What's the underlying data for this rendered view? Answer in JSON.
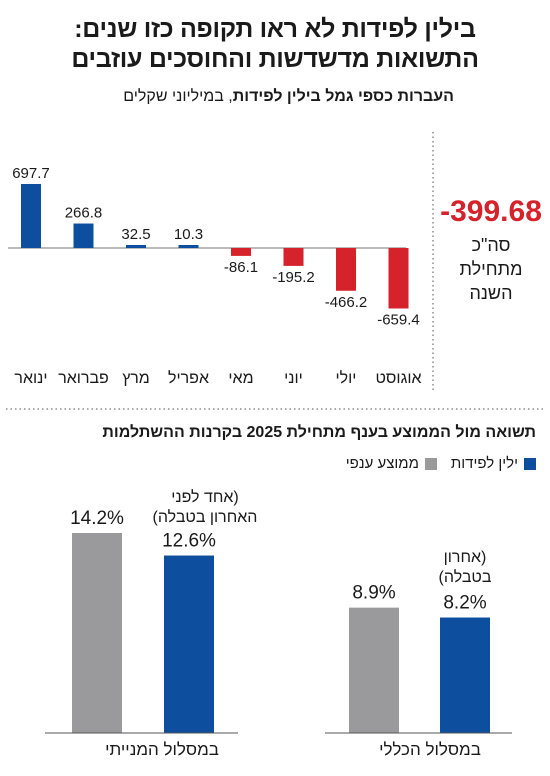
{
  "title_lines": [
    "בילין לפידות לא ראו תקופה כזו שנים:",
    "התשואות מדשדשות והחוסכים עוזבים"
  ],
  "subtitle": {
    "bold": "העברות כספי גמל בילין לפידות",
    "rest": ", במיליוני שקלים"
  },
  "total": {
    "value": "-399.68",
    "label_lines": [
      "סה\"כ",
      "מתחילת",
      "השנה"
    ]
  },
  "section2_title": "תשואה מול הממוצע בענף מתחילת 2025 בקרנות ההשתלמות",
  "legend": [
    {
      "label": "ילין לפידות",
      "color": "#0d4f9e"
    },
    {
      "label": "ממוצע ענפי",
      "color": "#9a9a9c"
    }
  ],
  "colors": {
    "positive": "#0d4f9e",
    "negative": "#d6222a",
    "company": "#0d4f9e",
    "average": "#9a9a9c"
  },
  "chart_data": [
    {
      "type": "bar",
      "title": "העברות כספי גמל בילין לפידות",
      "unit": "במיליוני שקלים",
      "categories": [
        "ינואר",
        "פברואר",
        "מרץ",
        "אפריל",
        "מאי",
        "יוני",
        "יולי",
        "אוגוסט"
      ],
      "values": [
        697.7,
        266.8,
        32.5,
        10.3,
        -86.1,
        -195.2,
        -466.2,
        -659.4
      ],
      "value_labels": [
        "697.7",
        "266.8",
        "32.5",
        "10.3",
        "-86.1",
        "-195.2",
        "-466.2",
        "-659.4"
      ],
      "ylim": [
        -700,
        720
      ],
      "x_order": "left-to-right"
    },
    {
      "type": "bar",
      "title": "תשואה מול הממוצע בענף מתחילת 2025 בקרנות ההשתלמות",
      "categories": [
        "במסלול המנייתי",
        "במסלול הכללי"
      ],
      "series": [
        {
          "name": "ממוצע ענפי",
          "values": [
            14.2,
            8.9
          ],
          "labels": [
            "14.2%",
            "8.9%"
          ]
        },
        {
          "name": "ילין לפידות",
          "values": [
            12.6,
            8.2
          ],
          "labels": [
            "12.6%",
            "8.2%"
          ]
        }
      ],
      "notes": [
        [
          "(אחד לפני",
          "האחרון בטבלה)"
        ],
        [
          "(אחרון",
          "בטבלה)"
        ]
      ],
      "ylim": [
        0,
        15
      ]
    }
  ]
}
